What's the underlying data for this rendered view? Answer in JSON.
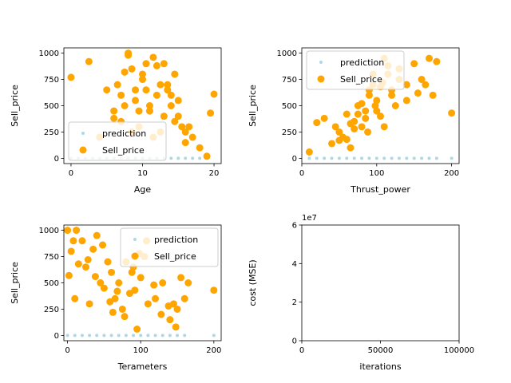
{
  "colors": {
    "prediction": "#add8e6",
    "sell_price": "#ffa500"
  },
  "chart_data": [
    {
      "type": "scatter",
      "xlabel": "Age",
      "ylabel": "Sell_price",
      "xlim": [
        -1,
        21
      ],
      "ylim": [
        -50,
        1050
      ],
      "xticks": [
        "0",
        "10",
        "20"
      ],
      "xtick_values": [
        0,
        10,
        20
      ],
      "yticks": [
        "0",
        "250",
        "500",
        "750",
        "1000"
      ],
      "ytick_values": [
        0,
        250,
        500,
        750,
        1000
      ],
      "legend": {
        "placement": "lower-left",
        "entries": [
          "prediction",
          "Sell_price"
        ]
      },
      "series": [
        {
          "name": "prediction",
          "marker": "small-dot",
          "x": [
            0,
            1,
            2,
            3,
            4,
            5,
            6,
            7,
            8,
            9,
            10,
            11,
            12,
            13,
            14,
            15,
            16,
            17,
            18,
            19
          ],
          "y": [
            0,
            0,
            0,
            0,
            0,
            0,
            0,
            0,
            0,
            0,
            0,
            0,
            0,
            0,
            0,
            0,
            0,
            0,
            0,
            0
          ]
        },
        {
          "name": "Sell_price",
          "marker": "dot",
          "x": [
            0,
            2.5,
            4,
            5,
            6,
            6.5,
            7,
            7.5,
            8,
            8.5,
            9,
            9.5,
            10,
            10.5,
            11,
            11.5,
            12,
            12.5,
            13,
            13.5,
            14,
            14.5,
            15,
            15.5,
            16,
            17,
            18,
            19,
            19.5,
            20,
            8,
            10,
            12,
            14,
            16,
            7,
            11,
            13,
            9,
            15,
            8.5,
            10.5,
            12.5,
            6,
            14.5,
            9.5,
            11.5,
            13.5,
            7.5,
            16.5
          ],
          "y": [
            770,
            920,
            200,
            650,
            450,
            700,
            600,
            500,
            1000,
            850,
            550,
            300,
            800,
            650,
            450,
            960,
            600,
            250,
            900,
            700,
            500,
            350,
            400,
            300,
            250,
            200,
            100,
            20,
            430,
            610,
            980,
            750,
            880,
            600,
            150,
            350,
            500,
            400,
            650,
            550,
            250,
            900,
            700,
            380,
            800,
            450,
            200,
            650,
            820,
            300
          ]
        }
      ]
    },
    {
      "type": "scatter",
      "xlabel": "Thrust_power",
      "ylabel": "Sell_price",
      "xlim": [
        0,
        210
      ],
      "ylim": [
        -50,
        1050
      ],
      "xticks": [
        "0",
        "100",
        "200"
      ],
      "xtick_values": [
        0,
        100,
        200
      ],
      "yticks": [
        "0",
        "250",
        "500",
        "750",
        "1000"
      ],
      "ytick_values": [
        0,
        250,
        500,
        750,
        1000
      ],
      "legend": {
        "placement": "upper-left",
        "entries": [
          "prediction",
          "Sell_price"
        ]
      },
      "series": [
        {
          "name": "prediction",
          "marker": "small-dot",
          "x": [
            10,
            20,
            30,
            40,
            50,
            60,
            70,
            80,
            90,
            100,
            110,
            120,
            130,
            140,
            150,
            160,
            170,
            180,
            200
          ],
          "y": [
            0,
            0,
            0,
            0,
            0,
            0,
            0,
            0,
            0,
            0,
            0,
            0,
            0,
            0,
            0,
            0,
            0,
            0,
            0
          ]
        },
        {
          "name": "Sell_price",
          "marker": "dot",
          "x": [
            10,
            20,
            30,
            40,
            45,
            50,
            55,
            60,
            65,
            70,
            75,
            80,
            85,
            90,
            95,
            100,
            105,
            110,
            115,
            120,
            125,
            130,
            140,
            150,
            160,
            170,
            180,
            200,
            60,
            70,
            80,
            90,
            100,
            110,
            120,
            130,
            75,
            85,
            95,
            105,
            115,
            50,
            65,
            140,
            155,
            165,
            175,
            88,
            98,
            108
          ],
          "y": [
            60,
            340,
            380,
            140,
            300,
            250,
            200,
            420,
            100,
            350,
            500,
            300,
            450,
            600,
            700,
            550,
            400,
            950,
            800,
            650,
            500,
            850,
            700,
            900,
            750,
            950,
            920,
            430,
            180,
            280,
            520,
            650,
            450,
            300,
            600,
            750,
            420,
            380,
            800,
            680,
            880,
            170,
            330,
            550,
            620,
            700,
            600,
            250,
            500,
            720
          ]
        }
      ]
    },
    {
      "type": "scatter",
      "xlabel": "Terameters",
      "ylabel": "Sell_price",
      "xlim": [
        -5,
        210
      ],
      "ylim": [
        -50,
        1050
      ],
      "xticks": [
        "0",
        "100",
        "200"
      ],
      "xtick_values": [
        0,
        100,
        200
      ],
      "yticks": [
        "0",
        "250",
        "500",
        "750",
        "1000"
      ],
      "ytick_values": [
        0,
        250,
        500,
        750,
        1000
      ],
      "legend": {
        "placement": "upper-right",
        "entries": [
          "prediction",
          "Sell_price"
        ]
      },
      "series": [
        {
          "name": "prediction",
          "marker": "small-dot",
          "x": [
            0,
            10,
            20,
            30,
            40,
            50,
            60,
            70,
            80,
            90,
            100,
            110,
            120,
            130,
            140,
            150,
            160,
            200
          ],
          "y": [
            0,
            0,
            0,
            0,
            0,
            0,
            0,
            0,
            0,
            0,
            0,
            0,
            0,
            0,
            0,
            0,
            0,
            0
          ]
        },
        {
          "name": "Sell_price",
          "marker": "dot",
          "x": [
            0,
            2,
            5,
            10,
            15,
            20,
            25,
            30,
            35,
            40,
            45,
            50,
            55,
            60,
            65,
            70,
            75,
            80,
            85,
            90,
            95,
            100,
            105,
            110,
            120,
            130,
            140,
            150,
            160,
            165,
            200,
            12,
            28,
            48,
            68,
            88,
            108,
            128,
            148,
            38,
            58,
            78,
            98,
            118,
            138,
            8,
            62,
            92,
            145,
            155
          ],
          "y": [
            1000,
            570,
            800,
            350,
            680,
            900,
            650,
            300,
            820,
            950,
            500,
            450,
            700,
            600,
            350,
            500,
            250,
            700,
            400,
            650,
            60,
            550,
            750,
            300,
            350,
            500,
            150,
            250,
            350,
            500,
            430,
            1000,
            720,
            860,
            420,
            600,
            900,
            200,
            80,
            560,
            320,
            180,
            780,
            480,
            280,
            900,
            220,
            430,
            300,
            550
          ]
        }
      ]
    },
    {
      "type": "line",
      "xlabel": "iterations",
      "ylabel": "cost (MSE)",
      "xlim": [
        0,
        100000
      ],
      "ylim": [
        0,
        60000000
      ],
      "xticks": [
        "0",
        "50000",
        "100000"
      ],
      "xtick_values": [
        0,
        50000,
        100000
      ],
      "yticks": [
        "0",
        "2",
        "4",
        "6"
      ],
      "ytick_values": [
        0,
        20000000,
        40000000,
        60000000
      ],
      "offset_text": "1e7",
      "series": []
    }
  ]
}
